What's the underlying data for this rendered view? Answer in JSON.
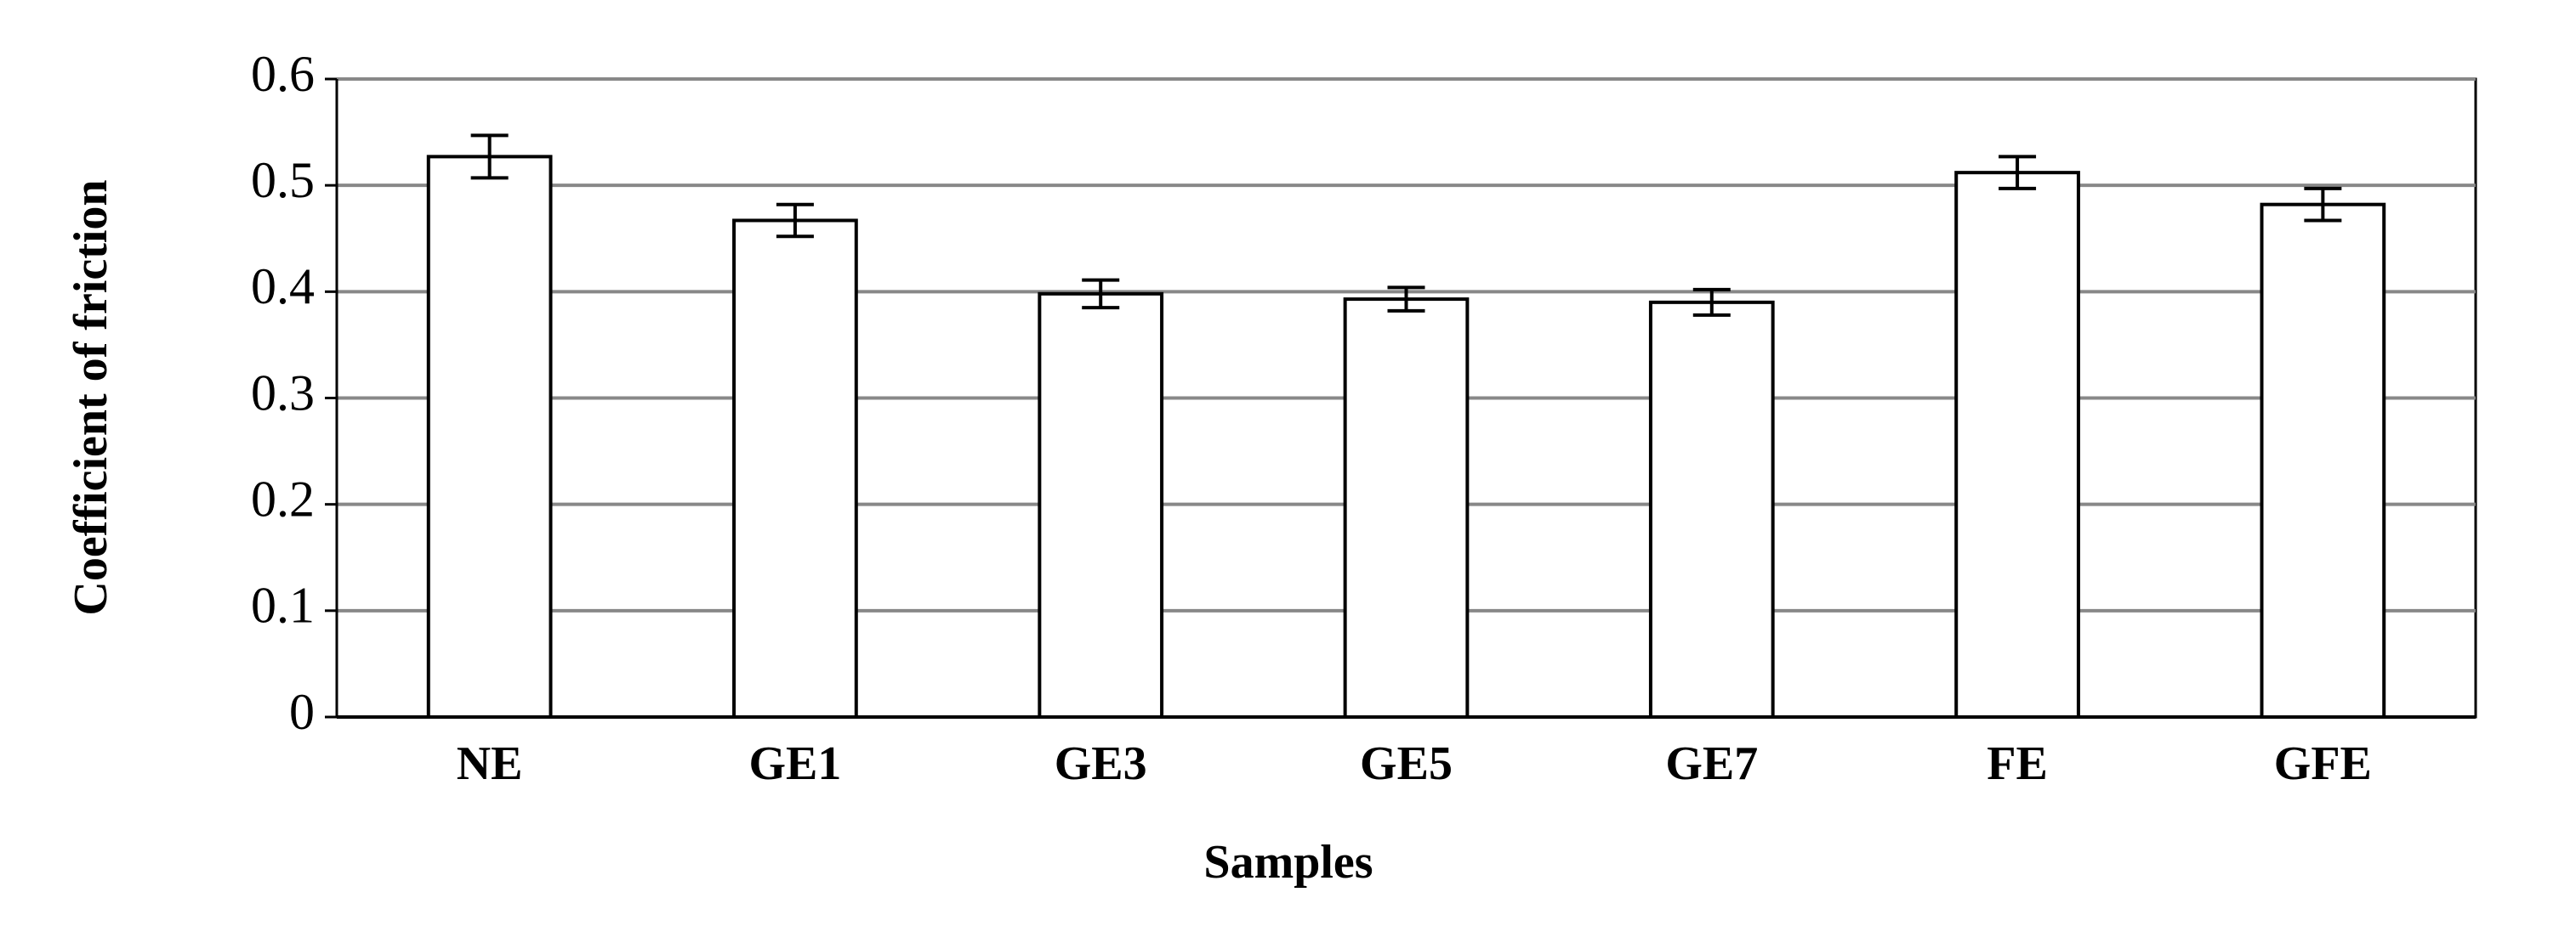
{
  "chart_data": {
    "type": "bar",
    "x_label": "Samples",
    "y_label": "Coefficient of friction",
    "categories": [
      "NE",
      "GE1",
      "GE3",
      "GE5",
      "GE7",
      "FE",
      "GFE"
    ],
    "values": [
      0.527,
      0.467,
      0.398,
      0.393,
      0.39,
      0.512,
      0.482
    ],
    "errors": [
      0.02,
      0.015,
      0.013,
      0.011,
      0.012,
      0.015,
      0.015
    ],
    "color": "#ffffff",
    "ylim": [
      0,
      0.6
    ],
    "yticks": [
      0,
      0.1,
      0.2,
      0.3,
      0.4,
      0.5,
      0.6
    ],
    "grid": true
  }
}
